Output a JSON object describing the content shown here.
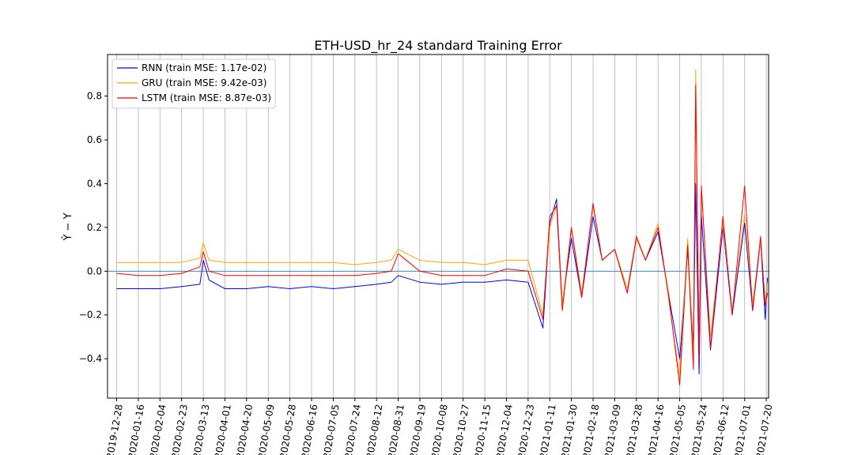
{
  "chart_data": {
    "type": "line",
    "title": "ETH-USD_hr_24 standard Training Error",
    "xlabel": "",
    "ylabel": "Ŷ − Y",
    "ylim": [
      -0.58,
      0.99
    ],
    "yticks": [
      -0.4,
      -0.2,
      0.0,
      0.2,
      0.4,
      0.6,
      0.8
    ],
    "ytick_labels": [
      "−0.4",
      "−0.2",
      "0.0",
      "0.2",
      "0.4",
      "0.6",
      "0.8"
    ],
    "x_range": [
      "2019-12-20",
      "2021-07-22"
    ],
    "xtick_labels": [
      "2019-12-28",
      "2020-01-16",
      "2020-02-04",
      "2020-02-23",
      "2020-03-13",
      "2020-04-01",
      "2020-04-20",
      "2020-05-09",
      "2020-05-28",
      "2020-06-16",
      "2020-07-05",
      "2020-07-24",
      "2020-08-12",
      "2020-08-31",
      "2020-09-19",
      "2020-10-08",
      "2020-10-27",
      "2020-11-15",
      "2020-12-04",
      "2020-12-23",
      "2021-01-11",
      "2021-01-30",
      "2021-02-18",
      "2021-03-09",
      "2021-03-28",
      "2021-04-16",
      "2021-05-05",
      "2021-05-24",
      "2021-06-12",
      "2021-07-01",
      "2021-07-20"
    ],
    "grid": "vertical",
    "zero_line": true,
    "legend_position": "upper-left",
    "series": [
      {
        "name": "RNN (train MSE: 1.17e-02)",
        "color": "#0000ff",
        "x": [
          "2019-12-28",
          "2020-01-16",
          "2020-02-04",
          "2020-02-23",
          "2020-03-10",
          "2020-03-13",
          "2020-03-18",
          "2020-04-01",
          "2020-04-20",
          "2020-05-09",
          "2020-05-28",
          "2020-06-16",
          "2020-07-05",
          "2020-07-24",
          "2020-08-12",
          "2020-08-25",
          "2020-08-31",
          "2020-09-19",
          "2020-10-08",
          "2020-10-27",
          "2020-11-15",
          "2020-12-04",
          "2020-12-23",
          "2021-01-05",
          "2021-01-11",
          "2021-01-17",
          "2021-01-22",
          "2021-01-30",
          "2021-02-08",
          "2021-02-18",
          "2021-02-26",
          "2021-03-09",
          "2021-03-20",
          "2021-03-28",
          "2021-04-05",
          "2021-04-16",
          "2021-04-25",
          "2021-05-05",
          "2021-05-12",
          "2021-05-17",
          "2021-05-19",
          "2021-05-22",
          "2021-05-24",
          "2021-06-01",
          "2021-06-12",
          "2021-06-20",
          "2021-07-01",
          "2021-07-08",
          "2021-07-15",
          "2021-07-19",
          "2021-07-21"
        ],
        "values": [
          -0.08,
          -0.08,
          -0.08,
          -0.07,
          -0.06,
          0.05,
          -0.04,
          -0.08,
          -0.08,
          -0.07,
          -0.08,
          -0.07,
          -0.08,
          -0.07,
          -0.06,
          -0.05,
          -0.02,
          -0.05,
          -0.06,
          -0.05,
          -0.05,
          -0.04,
          -0.05,
          -0.26,
          0.22,
          0.33,
          -0.15,
          0.15,
          -0.12,
          0.25,
          0.05,
          0.1,
          -0.1,
          0.15,
          0.05,
          0.18,
          -0.1,
          -0.4,
          0.1,
          -0.35,
          0.4,
          -0.47,
          0.25,
          -0.36,
          0.2,
          -0.2,
          0.22,
          -0.18,
          0.14,
          -0.22,
          -0.03
        ]
      },
      {
        "name": "GRU (train MSE: 9.42e-03)",
        "color": "#ffa500",
        "x": [
          "2019-12-28",
          "2020-01-16",
          "2020-02-04",
          "2020-02-23",
          "2020-03-10",
          "2020-03-13",
          "2020-03-18",
          "2020-04-01",
          "2020-04-20",
          "2020-05-09",
          "2020-05-28",
          "2020-06-16",
          "2020-07-05",
          "2020-07-24",
          "2020-08-12",
          "2020-08-25",
          "2020-08-31",
          "2020-09-19",
          "2020-10-08",
          "2020-10-27",
          "2020-11-15",
          "2020-12-04",
          "2020-12-23",
          "2021-01-05",
          "2021-01-11",
          "2021-01-17",
          "2021-01-22",
          "2021-01-30",
          "2021-02-08",
          "2021-02-18",
          "2021-02-26",
          "2021-03-09",
          "2021-03-20",
          "2021-03-28",
          "2021-04-05",
          "2021-04-16",
          "2021-04-25",
          "2021-05-05",
          "2021-05-12",
          "2021-05-17",
          "2021-05-19",
          "2021-05-22",
          "2021-05-24",
          "2021-06-01",
          "2021-06-12",
          "2021-06-20",
          "2021-07-01",
          "2021-07-08",
          "2021-07-15",
          "2021-07-19",
          "2021-07-21"
        ],
        "values": [
          0.04,
          0.04,
          0.04,
          0.04,
          0.06,
          0.13,
          0.05,
          0.04,
          0.04,
          0.04,
          0.04,
          0.04,
          0.04,
          0.03,
          0.04,
          0.05,
          0.1,
          0.05,
          0.04,
          0.04,
          0.03,
          0.05,
          0.05,
          -0.2,
          0.2,
          0.3,
          -0.15,
          0.2,
          -0.1,
          0.3,
          0.05,
          0.1,
          -0.08,
          0.15,
          0.05,
          0.22,
          -0.12,
          -0.48,
          0.15,
          -0.4,
          0.92,
          -0.35,
          0.38,
          -0.3,
          0.22,
          -0.18,
          0.26,
          -0.15,
          0.14,
          -0.14,
          -0.05
        ]
      },
      {
        "name": "LSTM (train MSE: 8.87e-03)",
        "color": "#ff0000",
        "x": [
          "2019-12-28",
          "2020-01-16",
          "2020-02-04",
          "2020-02-23",
          "2020-03-10",
          "2020-03-13",
          "2020-03-18",
          "2020-04-01",
          "2020-04-20",
          "2020-05-09",
          "2020-05-28",
          "2020-06-16",
          "2020-07-05",
          "2020-07-24",
          "2020-08-12",
          "2020-08-25",
          "2020-08-31",
          "2020-09-19",
          "2020-10-08",
          "2020-10-27",
          "2020-11-15",
          "2020-12-04",
          "2020-12-23",
          "2021-01-05",
          "2021-01-11",
          "2021-01-17",
          "2021-01-22",
          "2021-01-30",
          "2021-02-08",
          "2021-02-18",
          "2021-02-26",
          "2021-03-09",
          "2021-03-20",
          "2021-03-28",
          "2021-04-05",
          "2021-04-16",
          "2021-04-25",
          "2021-05-05",
          "2021-05-12",
          "2021-05-17",
          "2021-05-19",
          "2021-05-22",
          "2021-05-24",
          "2021-06-01",
          "2021-06-12",
          "2021-06-20",
          "2021-07-01",
          "2021-07-08",
          "2021-07-15",
          "2021-07-19",
          "2021-07-21"
        ],
        "values": [
          -0.01,
          -0.02,
          -0.02,
          -0.01,
          0.02,
          0.09,
          0.0,
          -0.02,
          -0.02,
          -0.02,
          -0.02,
          -0.02,
          -0.02,
          -0.02,
          -0.01,
          0.0,
          0.08,
          0.0,
          -0.02,
          -0.02,
          -0.02,
          0.01,
          0.0,
          -0.22,
          0.25,
          0.3,
          -0.18,
          0.2,
          -0.12,
          0.31,
          0.05,
          0.1,
          -0.1,
          0.16,
          0.05,
          0.2,
          -0.1,
          -0.52,
          0.12,
          -0.45,
          0.85,
          -0.4,
          0.39,
          -0.35,
          0.25,
          -0.2,
          0.39,
          -0.18,
          0.16,
          -0.16,
          -0.1
        ]
      }
    ]
  }
}
